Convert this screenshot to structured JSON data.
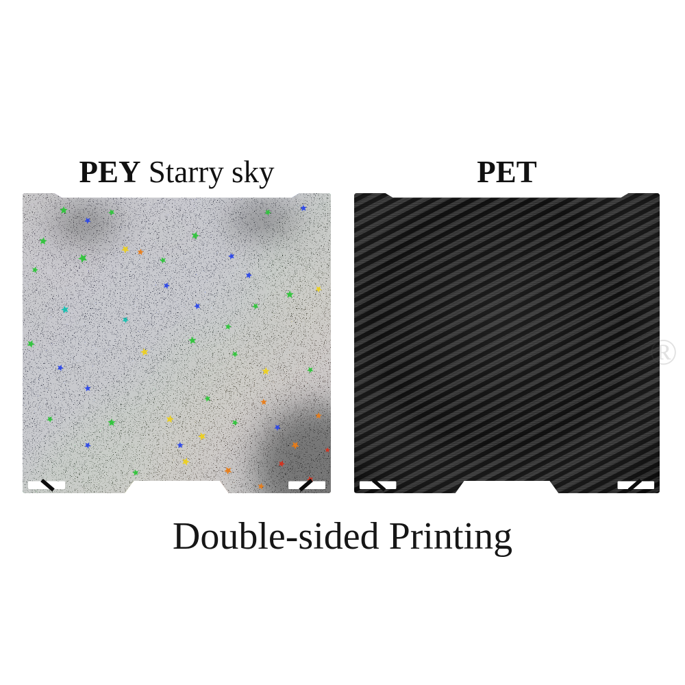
{
  "plates": {
    "left": {
      "title_bold": "PEY",
      "title_rest": " Starry sky"
    },
    "right": {
      "title": "PET"
    }
  },
  "caption": {
    "text": "Double-sided Printing"
  },
  "watermark": {
    "symbol": "®"
  },
  "colors": {
    "background": "#ffffff",
    "title_text": "#111111",
    "caption_text": "#161616",
    "corner_marks": "#ffffff",
    "starry_purple": "#3d1e68",
    "starry_blue": "#2640ee",
    "starry_green": "#21a634",
    "starry_yellow": "#d8b41c",
    "starry_orange": "#cc6a10",
    "starry_red": "#ac2208",
    "carbon_light": "#454545",
    "carbon_dark": "#101010"
  }
}
